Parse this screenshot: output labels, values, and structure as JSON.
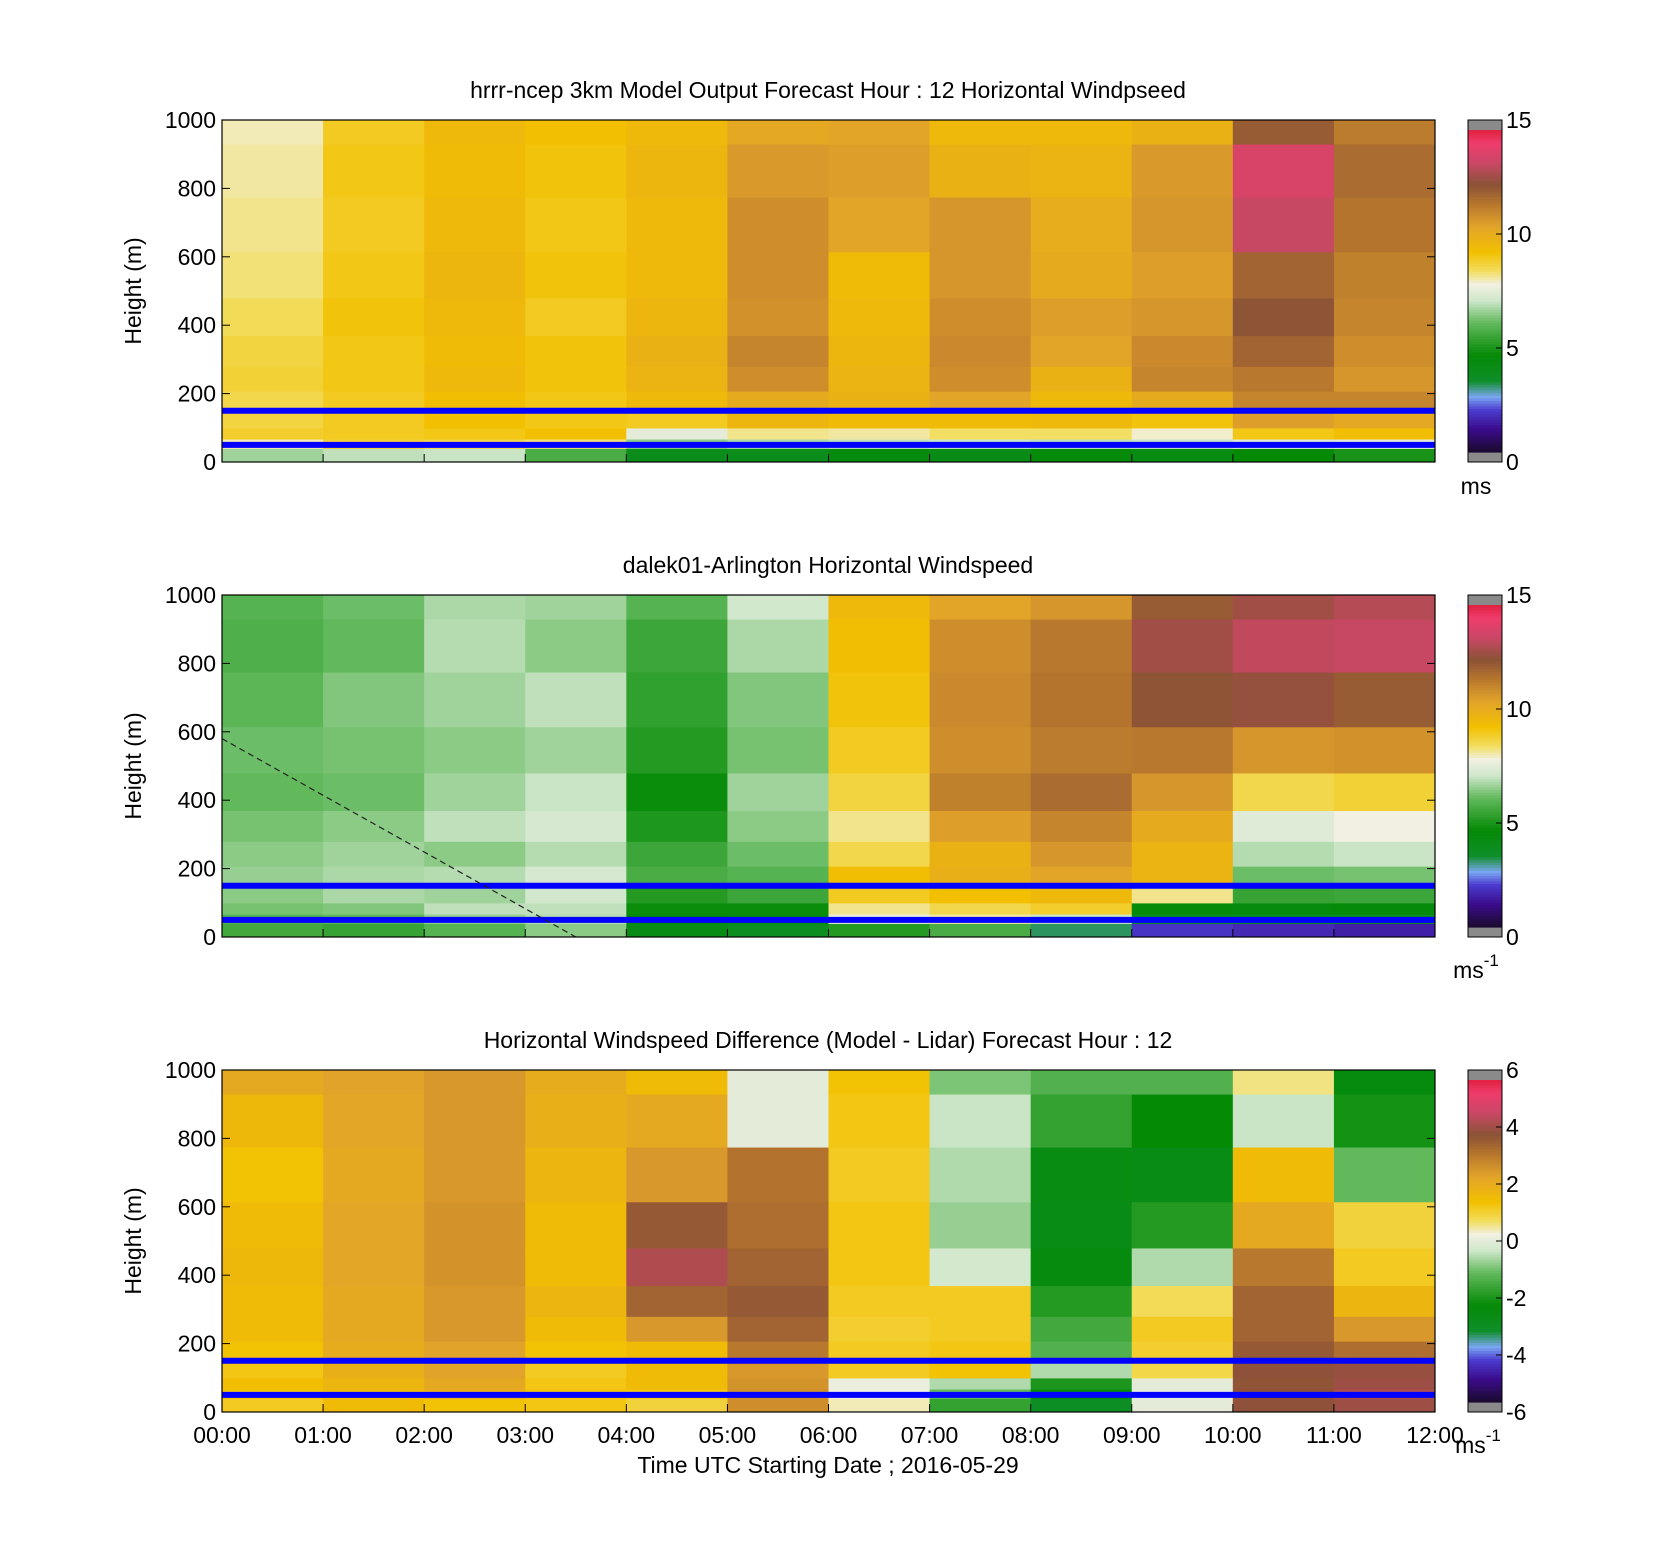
{
  "chart_data": [
    {
      "type": "heatmap",
      "title": "hrrr-ncep 3km Model Output   Forecast Hour : 12 Horizontal Windpseed",
      "ylabel": "Height (m)",
      "xlabel": "",
      "ylim": [
        0,
        1000
      ],
      "yticks": [
        "0",
        "200",
        "400",
        "600",
        "800",
        "1000"
      ],
      "colorbar": {
        "ticks": [
          "0",
          "5",
          "10",
          "15"
        ],
        "range": [
          0,
          15
        ],
        "unit_label": "ms",
        "unit_sup": "",
        "palette": "speed"
      },
      "hlines_m": [
        50,
        150
      ],
      "dashed_line": null,
      "x_columns": 12,
      "heights_m": [
        25,
        55,
        80,
        120,
        175,
        240,
        320,
        420,
        540,
        690,
        860,
        1000
      ],
      "values": [
        [
          6.6,
          6.9,
          7.0,
          5.6,
          3.8,
          3.8,
          4.2,
          4.0,
          4.4,
          4.1,
          4.5,
          4.8
        ],
        [
          8.0,
          8.8,
          8.6,
          8.3,
          6.4,
          6.7,
          6.9,
          7.0,
          6.9,
          7.0,
          7.4,
          7.5
        ],
        [
          8.9,
          9.0,
          9.1,
          9.3,
          7.5,
          8.2,
          8.1,
          8.4,
          8.4,
          7.9,
          9.1,
          9.4
        ],
        [
          8.7,
          9.0,
          9.3,
          9.1,
          9.0,
          9.7,
          9.5,
          9.5,
          9.6,
          9.2,
          10.6,
          10.3
        ],
        [
          8.6,
          9.0,
          9.4,
          9.1,
          9.6,
          10.2,
          9.9,
          10.4,
          9.6,
          10.2,
          11.2,
          11.2
        ],
        [
          8.8,
          9.1,
          9.6,
          9.2,
          9.8,
          11.0,
          9.8,
          11.0,
          9.9,
          11.2,
          11.5,
          10.8
        ],
        [
          8.7,
          9.1,
          9.5,
          9.2,
          9.9,
          11.2,
          9.7,
          11.1,
          10.4,
          11.1,
          12.0,
          11.0
        ],
        [
          8.5,
          9.2,
          9.6,
          9.0,
          9.7,
          10.9,
          9.6,
          11.0,
          10.6,
          10.8,
          12.4,
          11.2
        ],
        [
          8.3,
          9.1,
          9.7,
          9.2,
          9.6,
          11.0,
          9.5,
          10.8,
          10.2,
          10.6,
          12.0,
          11.3
        ],
        [
          8.2,
          9.0,
          9.6,
          9.1,
          9.6,
          11.0,
          10.4,
          10.8,
          10.1,
          10.8,
          13.4,
          11.6
        ],
        [
          8.1,
          9.1,
          9.5,
          9.2,
          9.7,
          10.7,
          10.6,
          9.9,
          9.8,
          10.7,
          13.8,
          11.8
        ],
        [
          8.0,
          9.0,
          9.6,
          9.3,
          9.6,
          10.3,
          10.4,
          9.6,
          9.6,
          9.9,
          12.2,
          11.4
        ]
      ]
    },
    {
      "type": "heatmap",
      "title": "dalek01-Arlington  Horizontal Windspeed",
      "ylabel": "Height (m)",
      "xlabel": "",
      "ylim": [
        0,
        1000
      ],
      "yticks": [
        "0",
        "200",
        "400",
        "600",
        "800",
        "1000"
      ],
      "colorbar": {
        "ticks": [
          "0",
          "5",
          "10",
          "15"
        ],
        "range": [
          0,
          15
        ],
        "unit_label": "ms",
        "unit_sup": "-1",
        "palette": "speed"
      },
      "hlines_m": [
        50,
        150
      ],
      "dashed_line": {
        "from": [
          "00:00",
          580
        ],
        "to": [
          "03:30",
          0
        ]
      },
      "x_columns": 12,
      "heights_m": [
        25,
        55,
        80,
        120,
        175,
        240,
        320,
        420,
        540,
        690,
        860,
        1000
      ],
      "values": [
        [
          5.5,
          5.3,
          5.8,
          6.4,
          4.0,
          3.6,
          5.0,
          5.6,
          3.1,
          1.8,
          1.6,
          1.4
        ],
        [
          5.8,
          6.0,
          6.5,
          6.8,
          4.4,
          4.2,
          7.6,
          8.1,
          7.0,
          3.8,
          3.6,
          3.6
        ],
        [
          6.2,
          6.3,
          6.9,
          6.9,
          4.6,
          4.6,
          8.2,
          8.6,
          8.9,
          4.4,
          4.3,
          4.4
        ],
        [
          6.4,
          6.7,
          6.6,
          7.1,
          5.0,
          5.4,
          9.0,
          9.3,
          9.6,
          8.2,
          5.3,
          5.4
        ],
        [
          6.5,
          6.7,
          6.8,
          7.2,
          5.6,
          5.8,
          9.4,
          10.0,
          10.4,
          9.8,
          6.1,
          6.2
        ],
        [
          6.4,
          6.6,
          6.4,
          6.8,
          5.4,
          6.1,
          8.6,
          9.9,
          10.8,
          9.8,
          6.8,
          7.0
        ],
        [
          6.2,
          6.4,
          6.9,
          7.2,
          4.9,
          6.4,
          8.2,
          10.6,
          11.2,
          10.2,
          7.4,
          7.8
        ],
        [
          6.0,
          6.1,
          6.6,
          7.0,
          4.6,
          6.6,
          8.7,
          11.3,
          11.8,
          10.8,
          8.6,
          8.8
        ],
        [
          6.1,
          6.2,
          6.4,
          6.6,
          5.0,
          6.2,
          9.0,
          11.0,
          11.4,
          11.5,
          10.8,
          10.9
        ],
        [
          5.9,
          6.3,
          6.6,
          6.9,
          5.2,
          6.3,
          9.2,
          11.1,
          11.6,
          12.4,
          12.6,
          12.2
        ],
        [
          5.7,
          6.0,
          6.8,
          6.4,
          5.4,
          6.7,
          9.4,
          11.0,
          11.5,
          12.8,
          13.3,
          13.4
        ],
        [
          5.8,
          6.1,
          6.7,
          6.6,
          5.8,
          7.1,
          9.6,
          10.4,
          10.8,
          12.2,
          12.8,
          13.1
        ]
      ]
    },
    {
      "type": "heatmap",
      "title": "Horizontal Windspeed Difference (Model - Lidar) Forecast Hour : 12",
      "ylabel": "Height (m)",
      "xlabel": "Time UTC  Starting Date ; 2016-05-29",
      "ylim": [
        0,
        1000
      ],
      "yticks": [
        "0",
        "200",
        "400",
        "600",
        "800",
        "1000"
      ],
      "xticks": [
        "00:00",
        "01:00",
        "02:00",
        "03:00",
        "04:00",
        "05:00",
        "06:00",
        "07:00",
        "08:00",
        "09:00",
        "10:00",
        "11:00",
        "12:00"
      ],
      "colorbar": {
        "ticks": [
          "-6",
          "-4",
          "-2",
          "0",
          "2",
          "4",
          "6"
        ],
        "range": [
          -6,
          6
        ],
        "unit_label": "ms",
        "unit_sup": "-1",
        "palette": "diff"
      },
      "hlines_m": [
        50,
        150
      ],
      "dashed_line": null,
      "x_columns": 12,
      "heights_m": [
        25,
        55,
        80,
        120,
        175,
        240,
        320,
        420,
        540,
        690,
        860,
        1000
      ],
      "values": [
        [
          1.2,
          1.6,
          1.4,
          1.3,
          1.0,
          2.8,
          0.4,
          -1.8,
          -3.2,
          0.0,
          4.0,
          4.2
        ],
        [
          1.4,
          1.6,
          2.0,
          1.4,
          1.3,
          2.8,
          0.2,
          -1.2,
          -2.6,
          0.0,
          4.0,
          4.4
        ],
        [
          1.5,
          1.8,
          2.2,
          1.3,
          1.6,
          2.7,
          0.1,
          -0.6,
          -2.1,
          0.0,
          3.9,
          4.2
        ],
        [
          1.3,
          2.0,
          2.4,
          1.2,
          1.6,
          2.6,
          1.2,
          1.4,
          -0.6,
          0.9,
          4.0,
          4.1
        ],
        [
          1.4,
          2.1,
          2.4,
          1.4,
          1.6,
          3.2,
          1.2,
          1.3,
          -1.4,
          1.1,
          3.8,
          3.4
        ],
        [
          1.6,
          2.2,
          2.6,
          1.6,
          2.6,
          3.6,
          1.1,
          1.2,
          -1.6,
          1.2,
          3.6,
          2.6
        ],
        [
          1.6,
          2.2,
          2.6,
          1.8,
          3.6,
          3.8,
          1.2,
          1.2,
          -2.0,
          0.8,
          3.6,
          1.8
        ],
        [
          1.7,
          2.3,
          2.7,
          1.6,
          4.4,
          3.6,
          1.3,
          -0.3,
          -2.6,
          -0.6,
          3.2,
          1.2
        ],
        [
          1.6,
          2.3,
          2.7,
          1.6,
          3.8,
          3.4,
          1.3,
          -0.8,
          -2.8,
          -2.0,
          2.2,
          1.0
        ],
        [
          1.4,
          2.2,
          2.6,
          1.8,
          2.6,
          3.3,
          1.2,
          -0.6,
          -2.7,
          -2.8,
          1.6,
          -1.2
        ],
        [
          1.7,
          2.3,
          2.6,
          2.0,
          2.2,
          0.0,
          1.3,
          -0.4,
          -1.8,
          -2.4,
          -0.4,
          -2.2
        ],
        [
          2.2,
          2.4,
          2.6,
          2.1,
          1.6,
          0.0,
          1.4,
          -1.0,
          -1.4,
          -1.4,
          0.6,
          -2.6
        ]
      ]
    }
  ],
  "colors": {
    "hline": "#0000ff",
    "dashed": "#222222",
    "oob": "#8a8a8a"
  }
}
